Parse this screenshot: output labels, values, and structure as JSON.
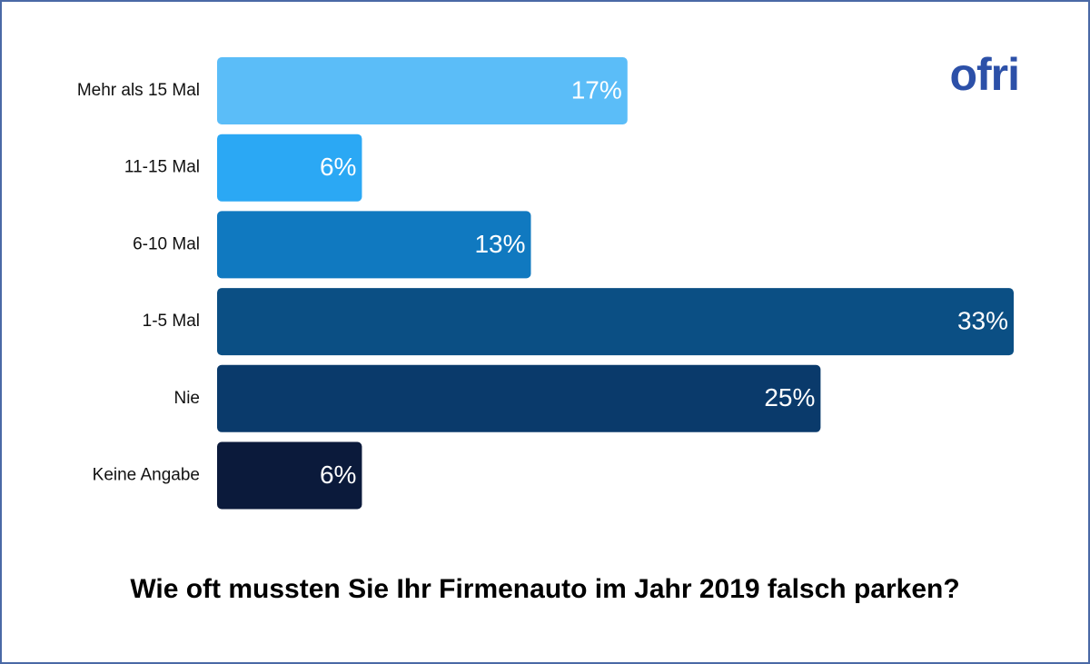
{
  "chart_data": {
    "type": "bar",
    "orientation": "horizontal",
    "title": "Wie oft mussten Sie Ihr Firmenauto im Jahr 2019 falsch parken?",
    "logo": "ofri",
    "categories": [
      "Mehr als 15 Mal",
      "11-15 Mal",
      "6-10 Mal",
      "1-5 Mal",
      "Nie",
      "Keine Angabe"
    ],
    "values": [
      17,
      6,
      13,
      33,
      25,
      6
    ],
    "value_labels": [
      "17%",
      "6%",
      "13%",
      "33%",
      "25%",
      "6%"
    ],
    "colors": [
      "#5bbdf8",
      "#2ba8f4",
      "#1079c0",
      "#0b4f84",
      "#0a3a6b",
      "#0b1a3b"
    ]
  }
}
